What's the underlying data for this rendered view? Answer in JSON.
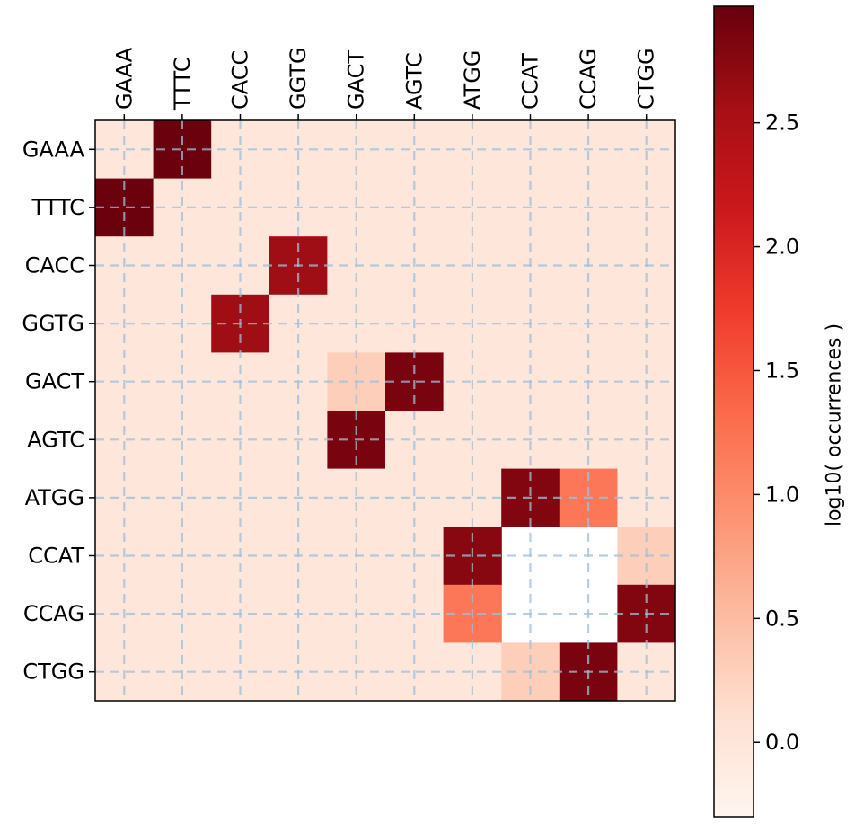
{
  "chart_data": {
    "type": "heatmap",
    "title": "",
    "x_tick_labels": [
      "GAAA",
      "TTTC",
      "CACC",
      "GGTG",
      "GACT",
      "AGTC",
      "ATGG",
      "CCAT",
      "CCAG",
      "CTGG"
    ],
    "y_tick_labels": [
      "GAAA",
      "TTTC",
      "CACC",
      "GGTG",
      "GACT",
      "AGTC",
      "ATGG",
      "CCAT",
      "CCAG",
      "CTGG"
    ],
    "x_tick_position": "top",
    "values": [
      [
        0,
        2.95,
        0,
        0,
        0,
        0,
        0,
        0,
        0,
        0
      ],
      [
        2.95,
        0,
        0,
        0,
        0,
        0,
        0,
        0,
        0,
        0
      ],
      [
        0,
        0,
        0,
        2.6,
        0,
        0,
        0,
        0,
        0,
        0
      ],
      [
        0,
        0,
        2.6,
        0,
        0,
        0,
        0,
        0,
        0,
        0
      ],
      [
        0,
        0,
        0,
        0,
        0.3,
        2.85,
        0,
        0,
        0,
        0
      ],
      [
        0,
        0,
        0,
        0,
        2.85,
        0,
        0,
        0,
        0,
        0
      ],
      [
        0,
        0,
        0,
        0,
        0,
        0,
        0,
        2.8,
        1.2,
        0
      ],
      [
        0,
        0,
        0,
        0,
        0,
        0,
        2.75,
        null,
        null,
        0.3
      ],
      [
        0,
        0,
        0,
        0,
        0,
        0,
        1.2,
        null,
        null,
        2.8
      ],
      [
        0,
        0,
        0,
        0,
        0,
        0,
        0,
        0.3,
        2.85,
        0
      ]
    ],
    "grid": true,
    "grid_style": "dashed",
    "grid_color": "#9dbfd9",
    "colormap": "Reds",
    "colorbar": {
      "label": "log10( occurrences )",
      "range": [
        -0.3,
        2.97
      ],
      "ticks": [
        0.0,
        0.5,
        1.0,
        1.5,
        2.0,
        2.5
      ],
      "tick_labels": [
        "0.0",
        "0.5",
        "1.0",
        "1.5",
        "2.0",
        "2.5"
      ],
      "placement": "right"
    }
  }
}
